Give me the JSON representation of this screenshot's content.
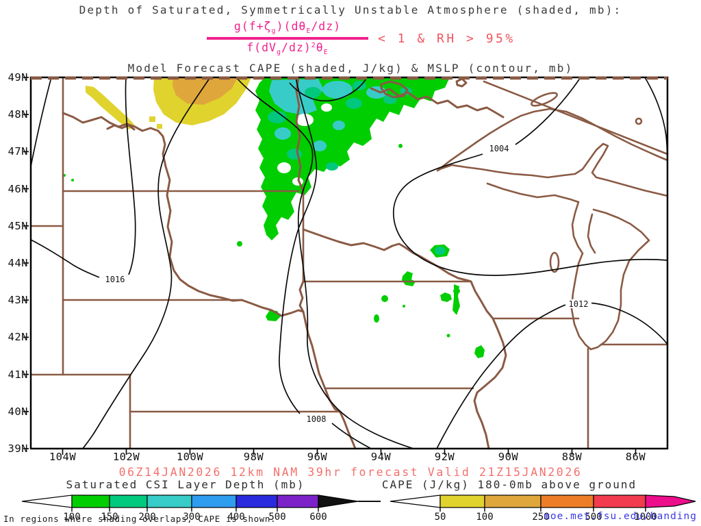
{
  "header": {
    "title": "Depth of Saturated, Symmetrically Unstable Atmosphere (shaded, mb):",
    "subtitle": "Model Forecast CAPE (shaded, J/kg) & MSLP (contour, mb)",
    "formula": {
      "numerator": [
        {
          "t": "g(f+ζ"
        },
        {
          "t": "g",
          "sub": true
        },
        {
          "t": ")(dθ"
        },
        {
          "t": "E",
          "sub": true
        },
        {
          "t": "/dz)"
        }
      ],
      "denominator": [
        {
          "t": "f(dV"
        },
        {
          "t": "g",
          "sub": true
        },
        {
          "t": "/dz)"
        },
        {
          "t": "2",
          "sup": true
        },
        {
          "t": "θ"
        },
        {
          "t": "E",
          "sub": true
        }
      ],
      "condition": "< 1 & RH > 95%",
      "fraction_color": "#F0218C",
      "condition_color": "#F25560"
    }
  },
  "map": {
    "lat_labels": [
      "49N",
      "48N",
      "47N",
      "46N",
      "45N",
      "44N",
      "43N",
      "42N",
      "41N",
      "40N",
      "39N"
    ],
    "lon_labels": [
      "104W",
      "102W",
      "100W",
      "98W",
      "96W",
      "94W",
      "92W",
      "90W",
      "88W",
      "86W"
    ],
    "contour_labels": [
      "1016",
      "1008",
      "1004",
      "1012"
    ],
    "border_color": "#8A5A44",
    "contour_color": "#0a0a0a",
    "shading_colors": {
      "green": "#00CE00",
      "teal": "#00C87D",
      "cyan": "#38CCC8",
      "yellow": "#E0D32E",
      "orange": "#DFA73B"
    }
  },
  "footer": {
    "model_line": "06Z14JAN2026 12km NAM 39hr forecast Valid 21Z15JAN2026",
    "model_line_color": "#F4706C",
    "note": "In regions where shading overlaps, CAPE is shown.",
    "website": "moe.met.fsu.edu/banding",
    "website_color": "#3A3AE6"
  },
  "colorbars": [
    {
      "id": "csi",
      "title": "Saturated CSI Layer Depth (mb)",
      "tick_labels": [
        "100",
        "150",
        "200",
        "300",
        "400",
        "500",
        "600"
      ],
      "segments": [
        {
          "range": "100-150",
          "color": "#00CE00"
        },
        {
          "range": "150-200",
          "color": "#00C87D"
        },
        {
          "range": "200-300",
          "color": "#38CCC8"
        },
        {
          "range": "300-400",
          "color": "#2E9CEF"
        },
        {
          "range": "400-500",
          "color": "#2A2ADF"
        },
        {
          "range": "500-600",
          "color": "#7B22C8"
        }
      ]
    },
    {
      "id": "cape",
      "title": "CAPE (J/kg) 180-0mb above ground",
      "tick_labels": [
        "50",
        "100",
        "250",
        "500",
        "1000"
      ],
      "segments": [
        {
          "range": "50-100",
          "color": "#E0D32E"
        },
        {
          "range": "100-250",
          "color": "#DFA73B"
        },
        {
          "range": "250-500",
          "color": "#ED7D26"
        },
        {
          "range": "500-1000",
          "color": "#F23B4E"
        },
        {
          "range": "1000+",
          "color": "#ED0E8C"
        }
      ]
    }
  ],
  "chart_data": {
    "type": "heatmap",
    "title": "Depth of Saturated, Symmetrically Unstable Atmosphere (shaded, mb)",
    "subtitle": "Model Forecast CAPE (shaded, J/kg) & MSLP (contour, mb)",
    "model_run": "06Z14JAN2026 12km NAM 39hr forecast Valid 21Z15JAN2026",
    "region": {
      "lon_west": "105W",
      "lon_east": "85W",
      "lat_south": "39N",
      "lat_north": "49N"
    },
    "x_tick_labels": [
      "104W",
      "102W",
      "100W",
      "98W",
      "96W",
      "94W",
      "92W",
      "90W",
      "88W",
      "86W"
    ],
    "y_tick_labels": [
      "39N",
      "40N",
      "41N",
      "42N",
      "43N",
      "44N",
      "45N",
      "46N",
      "47N",
      "48N",
      "49N"
    ],
    "mslp_contour_values_mb": [
      1004,
      1008,
      1012,
      1016
    ],
    "csi_layer_depth_scale_mb": [
      100,
      150,
      200,
      300,
      400,
      500,
      600
    ],
    "cape_scale_jkg": [
      50,
      100,
      250,
      500,
      1000
    ],
    "shaded_features": [
      {
        "field": "CAPE",
        "value_range_jkg": "50-250",
        "location": "northwest North Dakota near 101W-99W, 48N-49N",
        "colors": [
          "yellow",
          "orange"
        ]
      },
      {
        "field": "CAPE",
        "value_range_jkg": "50-100",
        "location": "thin band western North Dakota near 103W, 48N-49N",
        "colors": [
          "yellow"
        ]
      },
      {
        "field": "CSI depth",
        "value_range_mb": "100-300",
        "location": "northern Minnesota 97W-91W, 46.5N-49N",
        "colors": [
          "green",
          "teal",
          "cyan"
        ]
      },
      {
        "field": "CSI depth",
        "value_range_mb": "100-150",
        "location": "scattered small areas southeastern Minnesota / western Wisconsin / northeast Iowa 93W-90W, 40.5N-44.5N",
        "colors": [
          "green"
        ]
      }
    ]
  }
}
